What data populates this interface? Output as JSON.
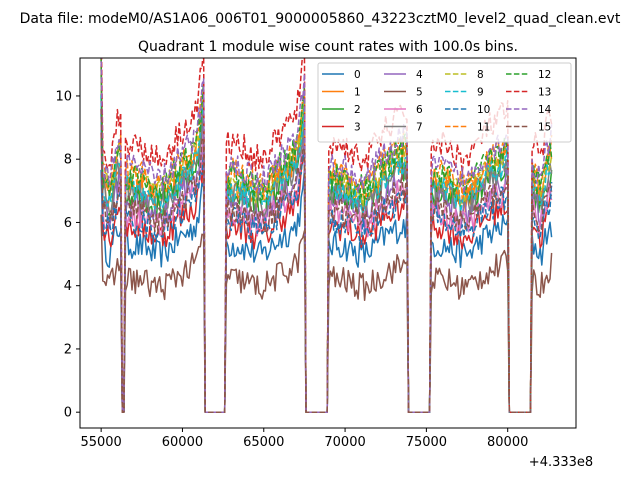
{
  "figure": {
    "suptitle": "Data file: modeM0/AS1A06_006T01_9000005860_43223cztM0_level2_quad_clean.evt",
    "offset_label": "+4.333e8"
  },
  "chart_data": {
    "type": "line",
    "title": "Quadrant 1 module wise count rates with 100.0s bins.",
    "xlabel": "",
    "ylabel": "",
    "xlim": [
      53700,
      84200
    ],
    "ylim": [
      -0.5,
      11.2
    ],
    "x_offset": 433300000,
    "xticks": [
      55000,
      60000,
      65000,
      70000,
      75000,
      80000
    ],
    "xtick_labels": [
      "55000",
      "60000",
      "65000",
      "70000",
      "75000",
      "80000"
    ],
    "yticks": [
      0,
      2,
      4,
      6,
      8,
      10
    ],
    "ytick_labels": [
      "0",
      "2",
      "4",
      "6",
      "8",
      "10"
    ],
    "grid": false,
    "legend": {
      "location": "upper right",
      "columns": 4
    },
    "observation_windows": [
      {
        "start": 55000,
        "end": 56200
      },
      {
        "start": 56500,
        "end": 61300
      },
      {
        "start": 62700,
        "end": 67500
      },
      {
        "start": 69000,
        "end": 73800
      },
      {
        "start": 75300,
        "end": 80000
      },
      {
        "start": 81500,
        "end": 82700
      }
    ],
    "series": [
      {
        "name": "0",
        "color": "#1f77b4",
        "dash": "solid",
        "level": 5.3
      },
      {
        "name": "1",
        "color": "#ff7f0e",
        "dash": "solid",
        "level": 7.2
      },
      {
        "name": "2",
        "color": "#2ca02c",
        "dash": "solid",
        "level": 6.9
      },
      {
        "name": "3",
        "color": "#d62728",
        "dash": "solid",
        "level": 5.9
      },
      {
        "name": "4",
        "color": "#9467bd",
        "dash": "solid",
        "level": 6.6
      },
      {
        "name": "5",
        "color": "#8c564b",
        "dash": "solid",
        "level": 4.2
      },
      {
        "name": "6",
        "color": "#e377c2",
        "dash": "solid",
        "level": 6.3
      },
      {
        "name": "7",
        "color": "#7f7f7f",
        "dash": "solid",
        "level": 7.0
      },
      {
        "name": "8",
        "color": "#bcbd22",
        "dash": "dashed",
        "level": 7.4
      },
      {
        "name": "9",
        "color": "#17becf",
        "dash": "dashed",
        "level": 7.1
      },
      {
        "name": "10",
        "color": "#1f77b4",
        "dash": "dashed",
        "level": 6.1
      },
      {
        "name": "11",
        "color": "#ff7f0e",
        "dash": "dashed",
        "level": 7.6
      },
      {
        "name": "12",
        "color": "#2ca02c",
        "dash": "dashed",
        "level": 7.5
      },
      {
        "name": "13",
        "color": "#d62728",
        "dash": "dashed",
        "level": 8.5
      },
      {
        "name": "14",
        "color": "#9467bd",
        "dash": "dashed",
        "level": 7.8
      },
      {
        "name": "15",
        "color": "#8c564b",
        "dash": "dashed",
        "level": 6.4
      }
    ]
  }
}
